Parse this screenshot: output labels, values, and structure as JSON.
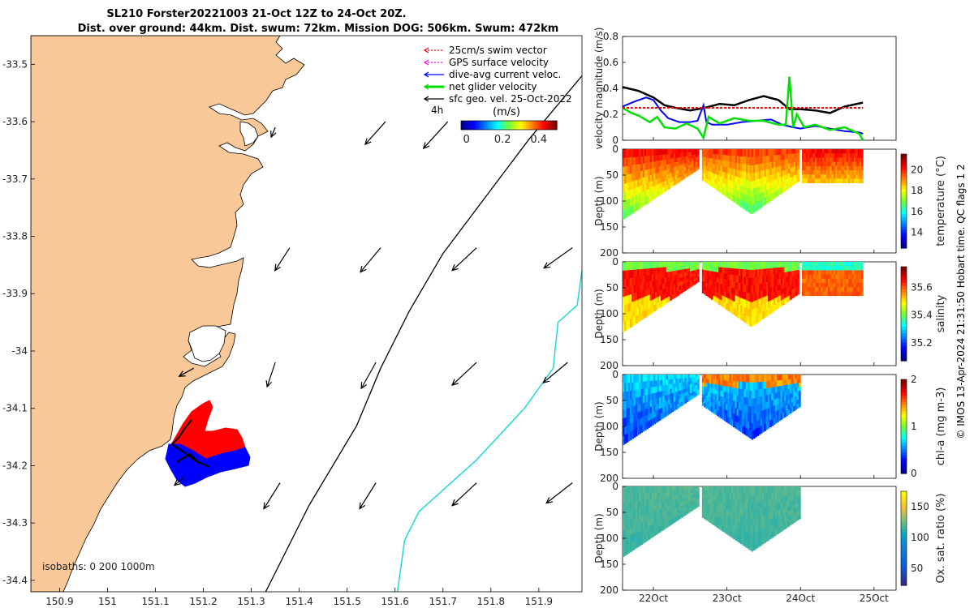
{
  "title": {
    "line1": "SL210 Forster20221003 21-Oct 12Z to 24-Oct 20Z.",
    "line2": "Dist. over ground: 44km. Dist. swum: 72km. Mission DOG: 506km. Swum: 472km"
  },
  "credit": "© IMOS 13-Apr-2024 21:31:50 Hobart time. QC flags 1  2",
  "colors": {
    "land": "#f8c898",
    "coastline": "#000000",
    "red": "#ff0000",
    "magenta": "#ff00ff",
    "blue": "#0000ff",
    "green": "#00e000",
    "black": "#000000",
    "isobath_200": "#000000",
    "isobath_1000": "#20d8d8"
  },
  "map": {
    "lon_range": [
      150.84,
      151.99
    ],
    "lat_range": [
      -34.42,
      -33.45
    ],
    "lon_ticks": [
      "150.9",
      "151",
      "151.1",
      "151.2",
      "151.3",
      "151.4",
      "151.5",
      "151.6",
      "151.7",
      "151.8",
      "151.9"
    ],
    "lat_ticks": [
      "-33.5",
      "-33.6",
      "-33.7",
      "-33.8",
      "-33.9",
      "-34",
      "-34.1",
      "-34.2",
      "-34.3",
      "-34.4"
    ],
    "legend": {
      "items": [
        {
          "label": "25cm/s swim vector",
          "color": "#ff0000",
          "style": "dotted"
        },
        {
          "label": "GPS surface velocity",
          "color": "#ff00ff",
          "style": "dotted"
        },
        {
          "label": "dive-avg current veloc.",
          "color": "#0000ff",
          "style": "solid"
        },
        {
          "label": "net glider velocity",
          "color": "#00e000",
          "style": "thick"
        },
        {
          "label": "sfc geo. vel. 25-Oct-2022",
          "color": "#000000",
          "style": "solid"
        }
      ],
      "interval_label": "4h"
    },
    "colorbar": {
      "label": "(m/s)",
      "ticks": [
        "0",
        "0.2",
        "0.4"
      ],
      "range": [
        -0.03,
        0.5
      ]
    },
    "isobath_label": "isobaths: 0   200  1000m",
    "isobath_200": [
      [
        151.33,
        -34.42
      ],
      [
        151.42,
        -34.27
      ],
      [
        151.52,
        -34.13
      ],
      [
        151.57,
        -34.03
      ],
      [
        151.63,
        -33.93
      ],
      [
        151.7,
        -33.83
      ],
      [
        151.79,
        -33.73
      ],
      [
        151.88,
        -33.63
      ],
      [
        151.99,
        -33.52
      ]
    ],
    "isobath_1000": [
      [
        151.605,
        -34.42
      ],
      [
        151.62,
        -34.33
      ],
      [
        151.65,
        -34.28
      ],
      [
        151.77,
        -34.19
      ],
      [
        151.87,
        -34.1
      ],
      [
        151.93,
        -34.03
      ],
      [
        151.94,
        -33.95
      ],
      [
        151.98,
        -33.92
      ],
      [
        151.99,
        -33.86
      ]
    ],
    "geo_vel_arrows": [
      {
        "lon": 151.58,
        "lat": -33.6,
        "u": -0.25,
        "v": -0.28
      },
      {
        "lon": 151.71,
        "lat": -33.6,
        "u": -0.3,
        "v": -0.33
      },
      {
        "lon": 151.35,
        "lat": -33.61,
        "u": -0.05,
        "v": -0.12
      },
      {
        "lon": 151.38,
        "lat": -33.82,
        "u": -0.18,
        "v": -0.28
      },
      {
        "lon": 151.57,
        "lat": -33.82,
        "u": -0.25,
        "v": -0.3
      },
      {
        "lon": 151.77,
        "lat": -33.82,
        "u": -0.3,
        "v": -0.28
      },
      {
        "lon": 151.97,
        "lat": -33.82,
        "u": -0.35,
        "v": -0.25
      },
      {
        "lon": 151.35,
        "lat": -34.02,
        "u": -0.1,
        "v": -0.3
      },
      {
        "lon": 151.56,
        "lat": -34.02,
        "u": -0.18,
        "v": -0.32
      },
      {
        "lon": 151.77,
        "lat": -34.02,
        "u": -0.3,
        "v": -0.28
      },
      {
        "lon": 151.96,
        "lat": -34.02,
        "u": -0.3,
        "v": -0.25
      },
      {
        "lon": 151.18,
        "lat": -34.03,
        "u": -0.18,
        "v": -0.1
      },
      {
        "lon": 151.36,
        "lat": -34.23,
        "u": -0.2,
        "v": -0.32
      },
      {
        "lon": 151.56,
        "lat": -34.23,
        "u": -0.2,
        "v": -0.32
      },
      {
        "lon": 151.77,
        "lat": -34.23,
        "u": -0.3,
        "v": -0.28
      },
      {
        "lon": 151.97,
        "lat": -34.23,
        "u": -0.32,
        "v": -0.25
      },
      {
        "lon": 151.16,
        "lat": -34.22,
        "u": -0.12,
        "v": -0.1
      }
    ]
  },
  "panels": [
    {
      "ylabel": "velocity magnitude (m/s)",
      "yticks": [
        "0",
        "0.2",
        "0.4",
        "0.6",
        "0.8"
      ]
    },
    {
      "ylabel": "Depth (m)",
      "yticks": [
        "0",
        "50",
        "100",
        "150",
        "200"
      ],
      "cbar_label": "temperature (°C)",
      "cbar_ticks": [
        "14",
        "16",
        "18",
        "20"
      ],
      "cbar_range": [
        12.5,
        21.5
      ]
    },
    {
      "ylabel": "Depth (m)",
      "yticks": [
        "0",
        "50",
        "100",
        "150",
        "200"
      ],
      "cbar_label": "salinity",
      "cbar_ticks": [
        "35.2",
        "35.4",
        "35.6"
      ],
      "cbar_range": [
        35.07,
        35.75
      ]
    },
    {
      "ylabel": "Depth (m)",
      "yticks": [
        "0",
        "50",
        "100",
        "150",
        "200"
      ],
      "cbar_label": "chl-a (mg m-3)",
      "cbar_ticks": [
        "0",
        "1",
        "2"
      ],
      "cbar_range": [
        0,
        2
      ]
    },
    {
      "ylabel": "Depth (m)",
      "yticks": [
        "0",
        "50",
        "100",
        "150",
        "200"
      ],
      "cbar_label": "Ox. sat. ratio (%)",
      "cbar_ticks": [
        "50",
        "100",
        "150"
      ],
      "cbar_range": [
        22,
        175
      ]
    }
  ],
  "time_axis": {
    "range_days": [
      21.58,
      25.3
    ],
    "ticks": [
      {
        "label": "22Oct",
        "day": 22
      },
      {
        "label": "23Oct",
        "day": 23
      },
      {
        "label": "24Oct",
        "day": 24
      },
      {
        "label": "25Oct",
        "day": 25
      }
    ]
  },
  "chart_data": {
    "type": "line",
    "title": "SL210 Forster20221003 21-Oct 12Z to 24-Oct 20Z.",
    "x_unit": "day of October 2022",
    "ylabel": "velocity magnitude (m/s)",
    "ylim": [
      0,
      0.8
    ],
    "series": [
      {
        "name": "sfc geo. vel. 25-Oct-2022",
        "color": "#000000",
        "x": [
          21.58,
          21.8,
          22.0,
          22.15,
          22.3,
          22.5,
          22.7,
          22.9,
          23.1,
          23.3,
          23.5,
          23.7,
          23.85,
          24.0,
          24.2,
          24.4,
          24.6,
          24.85
        ],
        "y": [
          0.41,
          0.38,
          0.33,
          0.27,
          0.25,
          0.23,
          0.25,
          0.28,
          0.27,
          0.31,
          0.34,
          0.31,
          0.24,
          0.24,
          0.23,
          0.21,
          0.26,
          0.29
        ]
      },
      {
        "name": "dive-avg current veloc.",
        "color": "#0000ff",
        "x": [
          21.58,
          21.75,
          21.9,
          22.0,
          22.1,
          22.2,
          22.35,
          22.5,
          22.6,
          22.68,
          22.72,
          22.8,
          23.0,
          23.2,
          23.4,
          23.6,
          23.75,
          23.9,
          24.0,
          24.2,
          24.4,
          24.6,
          24.8,
          24.85
        ],
        "y": [
          0.26,
          0.3,
          0.33,
          0.31,
          0.23,
          0.17,
          0.14,
          0.14,
          0.15,
          0.27,
          0.14,
          0.12,
          0.12,
          0.14,
          0.15,
          0.16,
          0.12,
          0.1,
          0.09,
          0.11,
          0.09,
          0.07,
          0.06,
          0.05
        ]
      },
      {
        "name": "net glider velocity",
        "color": "#00e000",
        "x": [
          21.58,
          21.7,
          21.8,
          21.95,
          22.05,
          22.15,
          22.3,
          22.45,
          22.6,
          22.68,
          22.75,
          22.9,
          23.1,
          23.3,
          23.5,
          23.7,
          23.8,
          23.85,
          23.9,
          23.95,
          24.05,
          24.2,
          24.4,
          24.6,
          24.8,
          24.85
        ],
        "y": [
          0.25,
          0.21,
          0.19,
          0.14,
          0.18,
          0.1,
          0.09,
          0.13,
          0.09,
          0.02,
          0.18,
          0.13,
          0.17,
          0.15,
          0.15,
          0.12,
          0.12,
          0.49,
          0.1,
          0.2,
          0.1,
          0.12,
          0.08,
          0.1,
          0.05,
          0.0
        ]
      },
      {
        "name": "25cm/s swim vector",
        "color": "#ff0000",
        "x": [
          21.58,
          24.85
        ],
        "y": [
          0.25,
          0.25
        ]
      }
    ]
  }
}
